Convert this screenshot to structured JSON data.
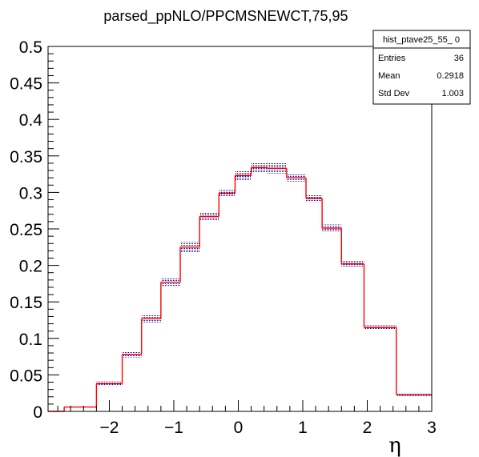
{
  "chart_data": {
    "type": "histogram",
    "title": "parsed_ppNLO/PPCMSNEWCT,75,95",
    "xlabel": "η",
    "ylabel": "",
    "xlim": [
      -2.95,
      3.0
    ],
    "ylim": [
      0,
      0.5
    ],
    "x_ticks": [
      -2,
      -1,
      0,
      1,
      2,
      3
    ],
    "y_ticks": [
      0,
      0.05,
      0.1,
      0.15,
      0.2,
      0.25,
      0.3,
      0.35,
      0.4,
      0.45,
      0.5
    ],
    "x_tick_labels": [
      "−2",
      "−1",
      "0",
      "1",
      "2",
      "3"
    ],
    "y_tick_labels": [
      "0",
      "0.05",
      "0.1",
      "0.15",
      "0.2",
      "0.25",
      "0.3",
      "0.35",
      "0.4",
      "0.45",
      "0.5"
    ],
    "bin_edges": [
      -2.95,
      -2.7,
      -2.2,
      -1.8,
      -1.5,
      -1.2,
      -0.9,
      -0.6,
      -0.3,
      -0.05,
      0.2,
      0.45,
      0.75,
      1.05,
      1.3,
      1.6,
      1.95,
      2.45,
      3.0
    ],
    "series": [
      {
        "values": [
          0.0,
          0.006,
          0.038,
          0.078,
          0.127,
          0.177,
          0.225,
          0.267,
          0.299,
          0.323,
          0.334,
          0.333,
          0.32,
          0.292,
          0.251,
          0.202,
          0.115,
          0.023
        ],
        "color": "#ff0000"
      },
      {
        "values": [
          0.0,
          0.006,
          0.038,
          0.078,
          0.127,
          0.177,
          0.225,
          0.267,
          0.299,
          0.323,
          0.334,
          0.333,
          0.32,
          0.292,
          0.251,
          0.202,
          0.115,
          0.023
        ],
        "errors": [
          0.0,
          0.001,
          0.003,
          0.004,
          0.005,
          0.006,
          0.007,
          0.006,
          0.005,
          0.006,
          0.007,
          0.007,
          0.005,
          0.005,
          0.005,
          0.004,
          0.003,
          0.002
        ],
        "color": "#000099"
      }
    ],
    "stats_box": {
      "name": "hist_ptave25_55_ 0",
      "rows": [
        {
          "label": "Entries",
          "value": "36"
        },
        {
          "label": "Mean",
          "value": "0.2918"
        },
        {
          "label": "Std Dev",
          "value": "1.003"
        }
      ]
    },
    "grid": false,
    "legend": "none"
  }
}
